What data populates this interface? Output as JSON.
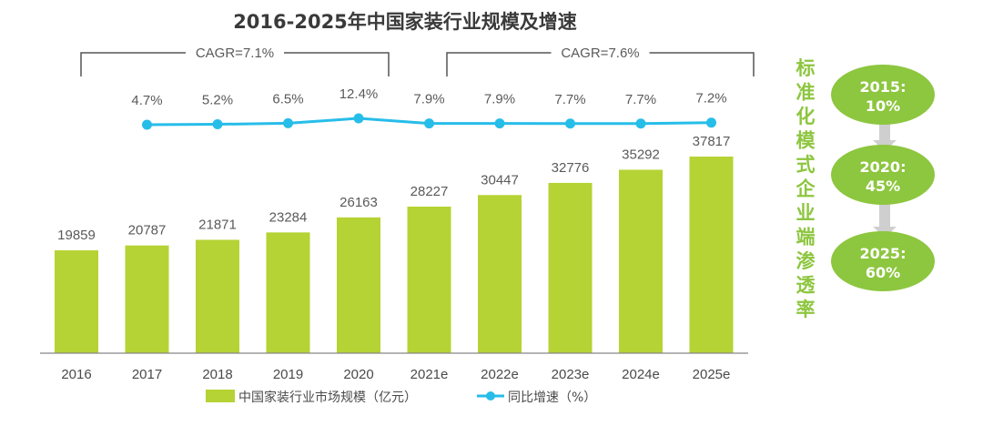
{
  "chart_data": {
    "type": "bar",
    "title": "2016-2025年中国家装行业规模及增速",
    "categories": [
      "2016",
      "2017",
      "2018",
      "2019",
      "2020",
      "2021e",
      "2022e",
      "2023e",
      "2024e",
      "2025e"
    ],
    "series": [
      {
        "name": "中国家装行业市场规模（亿元）",
        "type": "bar",
        "color": "#b5d334",
        "values": [
          19859,
          20787,
          21871,
          23284,
          26163,
          28227,
          30447,
          32776,
          35292,
          37817
        ],
        "labels": [
          "19859",
          "20787",
          "21871",
          "23284",
          "26163",
          "28227",
          "30447",
          "32776",
          "35292",
          "37817"
        ]
      },
      {
        "name": "同比增速（%）",
        "type": "line",
        "color": "#27bde9",
        "values": [
          4.7,
          5.2,
          6.5,
          12.4,
          7.9,
          7.9,
          7.7,
          7.7,
          7.2
        ],
        "x": [
          "2017",
          "2018",
          "2019",
          "2020",
          "2021e",
          "2022e",
          "2023e",
          "2024e",
          "2025e"
        ],
        "labels": [
          "4.7%",
          "5.2%",
          "6.5%",
          "12.4%",
          "7.9%",
          "7.9%",
          "7.7%",
          "7.7%",
          "7.2%"
        ]
      }
    ],
    "annotations": [
      {
        "text": "CAGR=7.1%",
        "from": "2016",
        "to": "2020"
      },
      {
        "text": "CAGR=7.6%",
        "from": "2021e",
        "to": "2025e"
      }
    ],
    "xlabel": "",
    "ylabel": "",
    "ylim": [
      0,
      40000
    ],
    "grid": false,
    "legend": "bottom"
  },
  "sidebar": {
    "title": "标准化模式企业端渗透率",
    "title_chars": [
      "标",
      "准",
      "化",
      "模",
      "式",
      "企",
      "业",
      "端",
      "渗",
      "透",
      "率"
    ],
    "steps": [
      {
        "line1": "2015:",
        "line2": "10%"
      },
      {
        "line1": "2020:",
        "line2": "45%"
      },
      {
        "line1": "2025:",
        "line2": "60%"
      }
    ],
    "oval_color": "#8dc63f",
    "arrow_color": "#cfcfcf"
  }
}
